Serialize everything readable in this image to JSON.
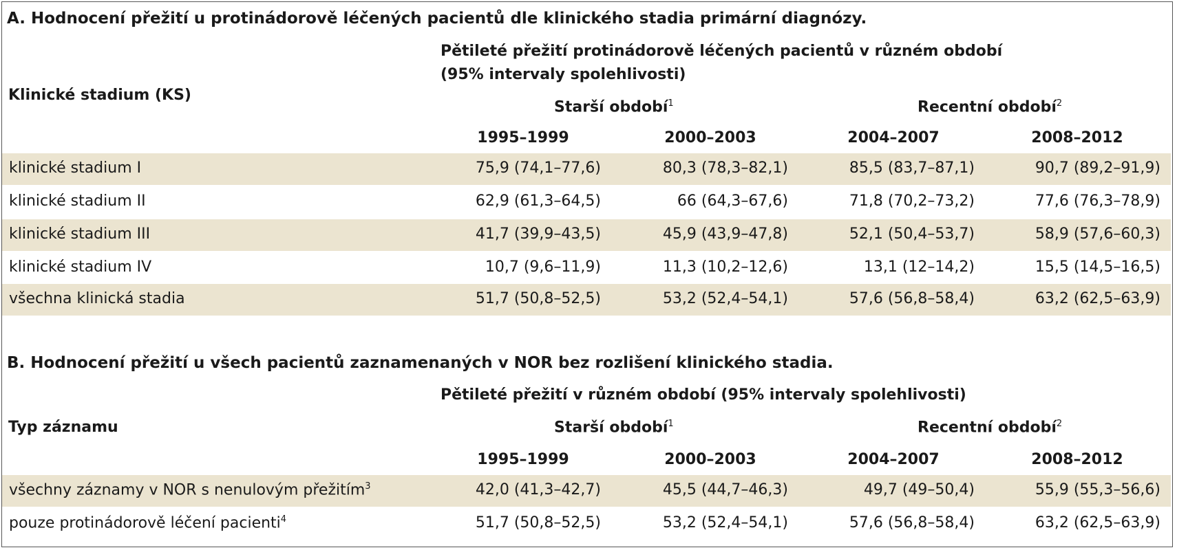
{
  "section_a": {
    "title": "A. Hodnocení přežití u protinádorově léčených pacientů dle klinického stadia primární diagnózy.",
    "header_main_line1": "Pětileté přežití protinádorově léčených pacientů v různém období",
    "header_main_line2": "(95% intervaly spolehlivosti)",
    "row_header": "Klinické stadium (KS)",
    "period_old": "Starší období",
    "period_old_note": "1",
    "period_recent": "Recentní období",
    "period_recent_note": "2",
    "years": [
      "1995–1999",
      "2000–2003",
      "2004–2007",
      "2008–2012"
    ],
    "rows": [
      {
        "label": "klinické stadium I",
        "values": [
          "75,9 (74,1–77,6)",
          "80,3 (78,3–82,1)",
          "85,5 (83,7–87,1)",
          "90,7 (89,2–91,9)"
        ]
      },
      {
        "label": "klinické stadium II",
        "values": [
          "62,9 (61,3–64,5)",
          "66 (64,3–67,6)",
          "71,8 (70,2–73,2)",
          "77,6 (76,3–78,9)"
        ]
      },
      {
        "label": "klinické stadium III",
        "values": [
          "41,7 (39,9–43,5)",
          "45,9 (43,9–47,8)",
          "52,1 (50,4–53,7)",
          "58,9 (57,6–60,3)"
        ]
      },
      {
        "label": "klinické stadium IV",
        "values": [
          "10,7 (9,6–11,9)",
          "11,3 (10,2–12,6)",
          "13,1 (12–14,2)",
          "15,5 (14,5–16,5)"
        ]
      },
      {
        "label": "všechna klinická stadia",
        "values": [
          "51,7 (50,8–52,5)",
          "53,2 (52,4–54,1)",
          "57,6 (56,8–58,4)",
          "63,2 (62,5–63,9)"
        ]
      }
    ]
  },
  "section_b": {
    "title": "B. Hodnocení přežití u všech pacientů zaznamenaných v NOR bez rozlišení klinického stadia.",
    "header_main": "Pětileté přežití v různém období (95% intervaly spolehlivosti)",
    "row_header": "Typ záznamu",
    "period_old": "Starší období",
    "period_old_note": "1",
    "period_recent": "Recentní období",
    "period_recent_note": "2",
    "years": [
      "1995–1999",
      "2000–2003",
      "2004–2007",
      "2008–2012"
    ],
    "rows": [
      {
        "label": "všechny záznamy v NOR s nenulovým přežitím",
        "note": "3",
        "values": [
          "42,0 (41,3–42,7)",
          "45,5 (44,7–46,3)",
          "49,7 (49–50,4)",
          "55,9 (55,3–56,6)"
        ]
      },
      {
        "label": "pouze protinádorově léčení pacienti",
        "note": "4",
        "values": [
          "51,7 (50,8–52,5)",
          "53,2 (52,4–54,1)",
          "57,6 (56,8–58,4)",
          "63,2 (62,5–63,9)"
        ]
      }
    ]
  }
}
